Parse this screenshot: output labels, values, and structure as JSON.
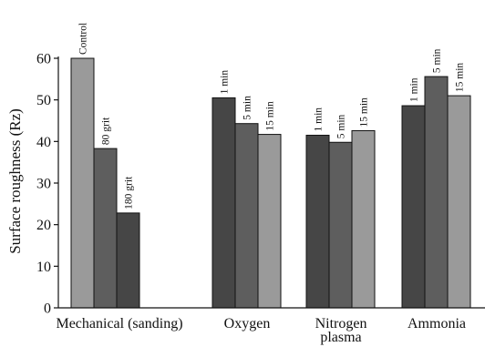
{
  "chart_data": {
    "type": "bar",
    "ylabel": "Surface roughness (Rz)",
    "ylim": [
      0,
      60
    ],
    "yticks": [
      0,
      10,
      20,
      30,
      40,
      50,
      60
    ],
    "grid": false,
    "groups": [
      {
        "label_lines": [
          "Mechanical (sanding)"
        ],
        "bars": [
          {
            "label": "Control",
            "value": 60.0,
            "color": "#9a9a9a"
          },
          {
            "label": "80 grit",
            "value": 38.3,
            "color": "#5e5e5e"
          },
          {
            "label": "180 grit",
            "value": 22.8,
            "color": "#464646"
          }
        ]
      },
      {
        "label_lines": [
          "Oxygen"
        ],
        "bars": [
          {
            "label": "1 min",
            "value": 50.5,
            "color": "#464646"
          },
          {
            "label": "5 min",
            "value": 44.3,
            "color": "#5e5e5e"
          },
          {
            "label": "15 min",
            "value": 41.7,
            "color": "#9a9a9a"
          }
        ]
      },
      {
        "label_lines": [
          "Nitrogen",
          "plasma"
        ],
        "bars": [
          {
            "label": "1 min",
            "value": 41.5,
            "color": "#464646"
          },
          {
            "label": "5 min",
            "value": 39.8,
            "color": "#5e5e5e"
          },
          {
            "label": "15 min",
            "value": 42.6,
            "color": "#9a9a9a"
          }
        ]
      },
      {
        "label_lines": [
          "Ammonia"
        ],
        "bars": [
          {
            "label": "1 min",
            "value": 48.6,
            "color": "#464646"
          },
          {
            "label": "5 min",
            "value": 55.6,
            "color": "#5e5e5e"
          },
          {
            "label": "15 min",
            "value": 51.0,
            "color": "#9a9a9a"
          }
        ]
      }
    ]
  }
}
